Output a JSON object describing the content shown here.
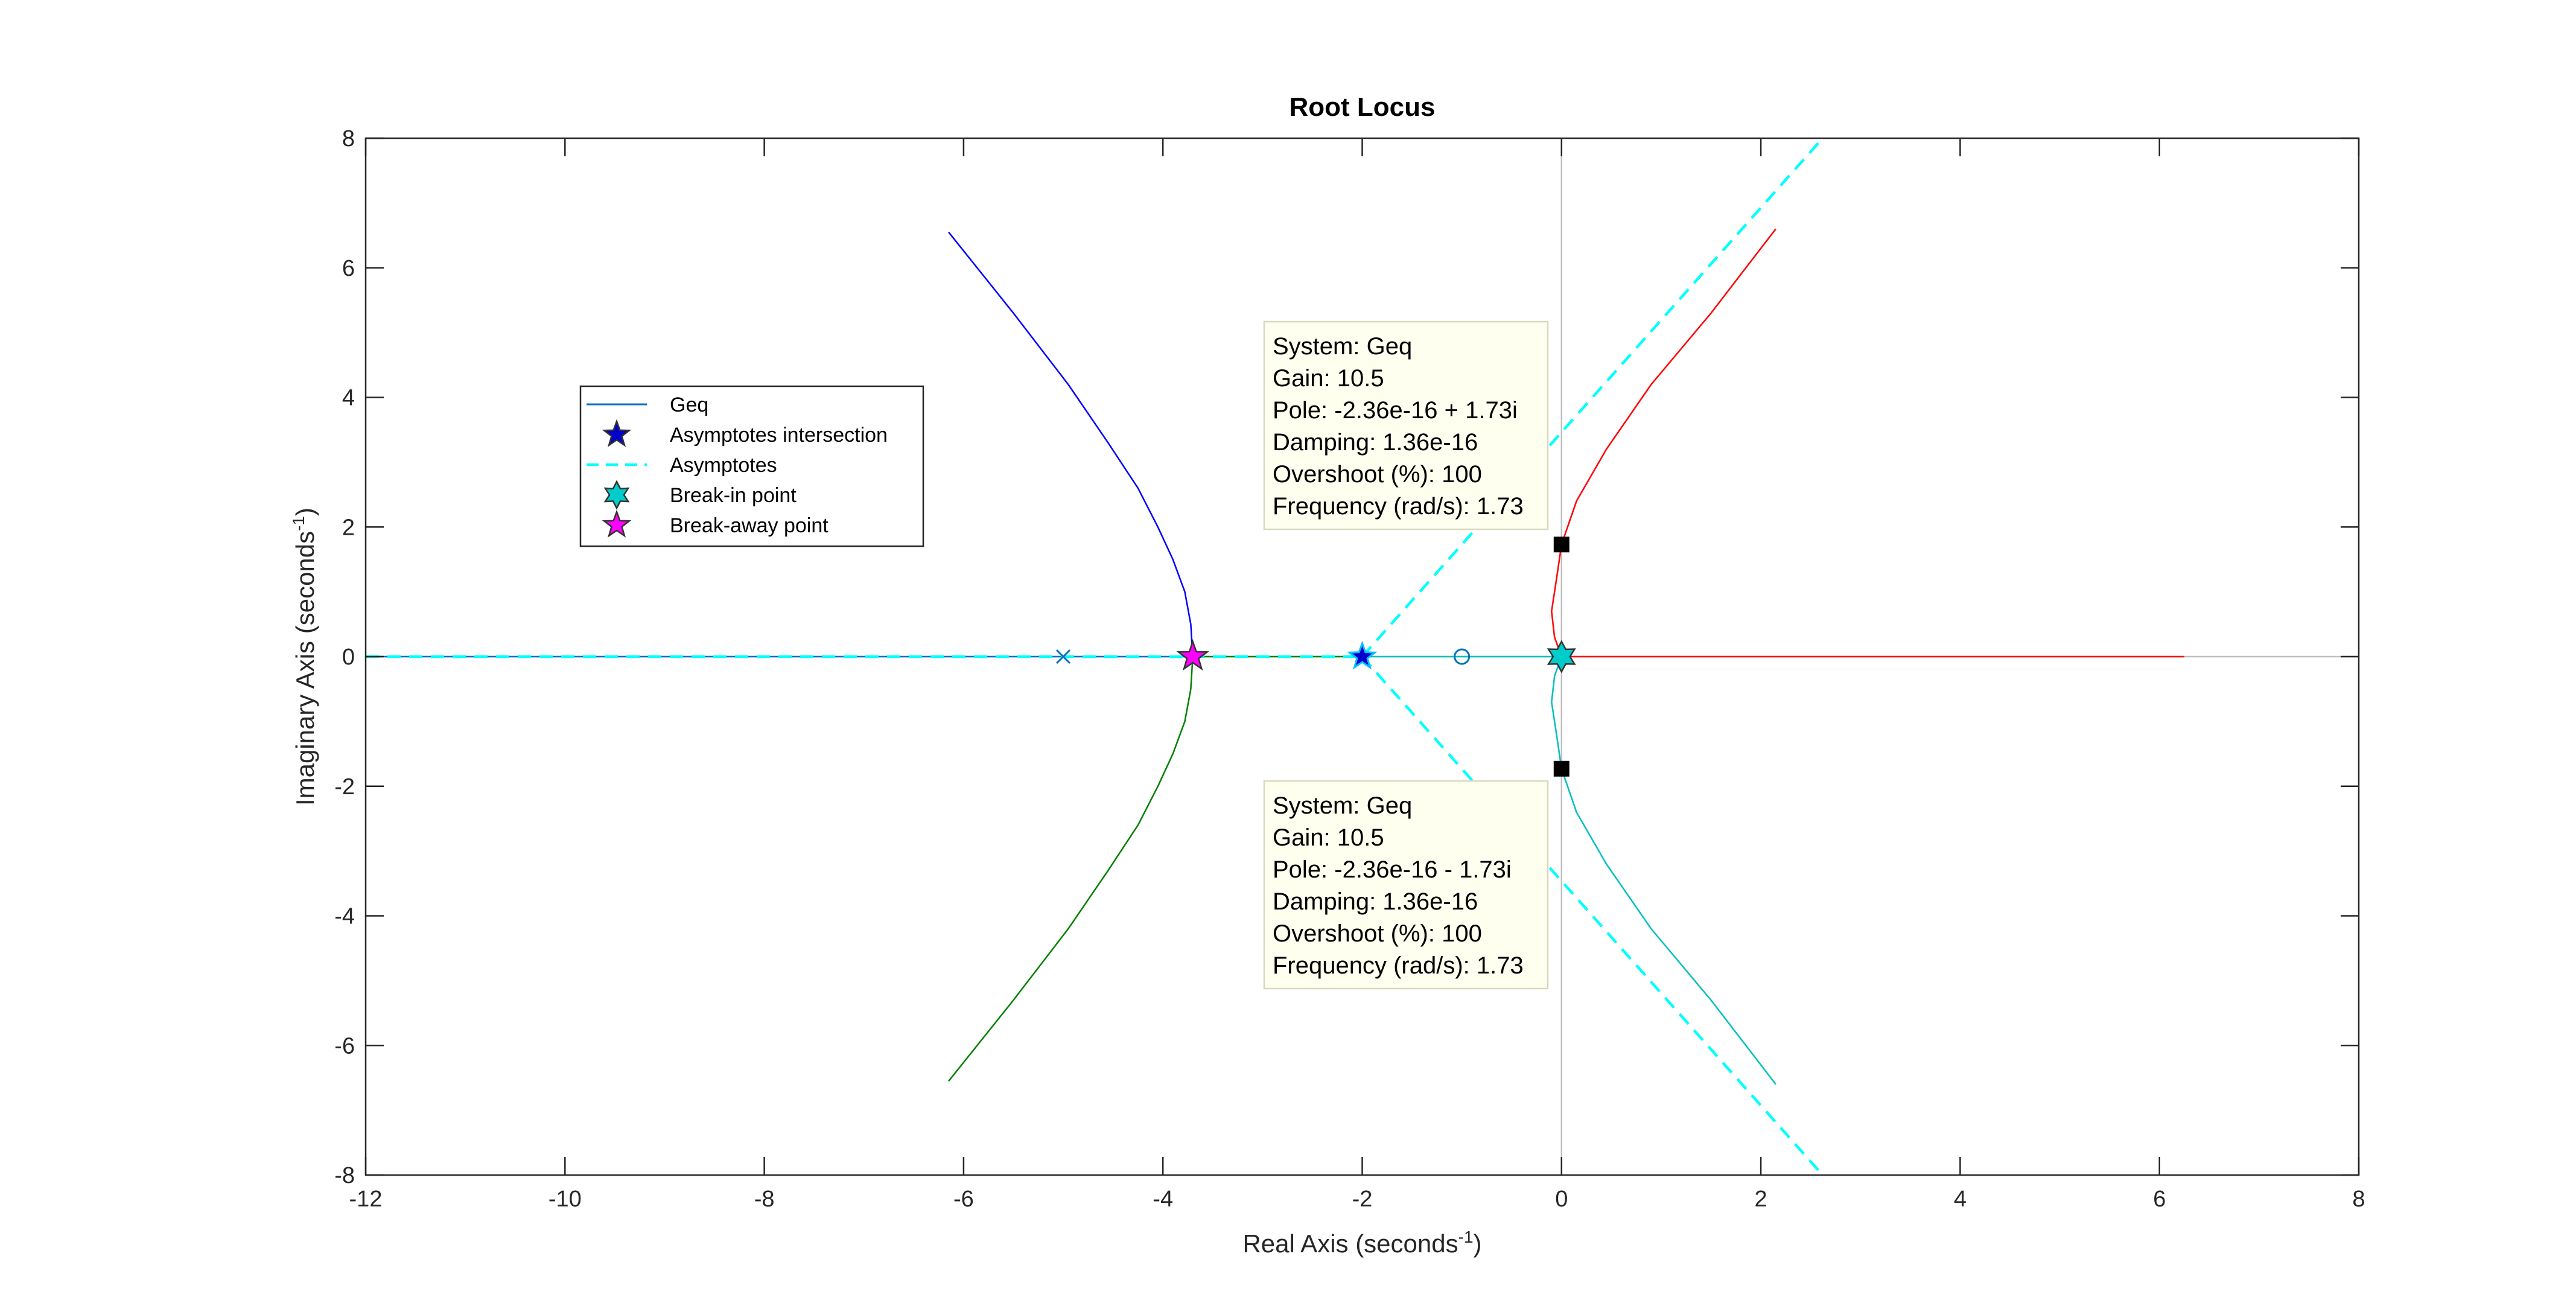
{
  "chart_data": {
    "type": "line",
    "title": "Root Locus",
    "xlabel": {
      "text": "Real Axis (seconds",
      "sup": "-1",
      "close": ")"
    },
    "ylabel": {
      "text": "Imaginary Axis (seconds",
      "sup": "-1",
      "close": ")"
    },
    "xlim": [
      -12,
      8
    ],
    "ylim": [
      -8,
      8
    ],
    "xticks": [
      -12,
      -10,
      -8,
      -6,
      -4,
      -2,
      0,
      2,
      4,
      6,
      8
    ],
    "yticks": [
      -8,
      -6,
      -4,
      -2,
      0,
      2,
      4,
      6,
      8
    ],
    "grid": false,
    "legend_position": "left",
    "legend": [
      {
        "label": "Geq",
        "kind": "line",
        "color": "#0072BD"
      },
      {
        "label": "Asymptotes intersection",
        "kind": "star",
        "color": "#0000CC"
      },
      {
        "label": "Asymptotes",
        "kind": "dash",
        "color": "#00FFFF"
      },
      {
        "label": "Break-in point",
        "kind": "hexagram",
        "color": "#00CCCC"
      },
      {
        "label": "Break-away point",
        "kind": "star",
        "color": "#FF00FF"
      }
    ],
    "series": [
      {
        "color": "#0000FF",
        "points": [
          [
            -3.7,
            0
          ],
          [
            -3.72,
            0.5
          ],
          [
            -3.78,
            1.0
          ],
          [
            -3.9,
            1.5
          ],
          [
            -4.05,
            2.0
          ],
          [
            -4.25,
            2.6
          ],
          [
            -4.55,
            3.3
          ],
          [
            -4.95,
            4.2
          ],
          [
            -5.5,
            5.3
          ],
          [
            -6.15,
            6.55
          ]
        ]
      },
      {
        "color": "#008000",
        "points": [
          [
            -3.7,
            0
          ],
          [
            -3.72,
            -0.5
          ],
          [
            -3.78,
            -1.0
          ],
          [
            -3.9,
            -1.5
          ],
          [
            -4.05,
            -2.0
          ],
          [
            -4.25,
            -2.6
          ],
          [
            -4.55,
            -3.3
          ],
          [
            -4.95,
            -4.2
          ],
          [
            -5.5,
            -5.3
          ],
          [
            -6.15,
            -6.55
          ]
        ]
      },
      {
        "color": "#FF0000",
        "points": [
          [
            0,
            0
          ],
          [
            -0.07,
            0.3
          ],
          [
            -0.1,
            0.7
          ],
          [
            -0.05,
            1.2
          ],
          [
            0,
            1.73
          ],
          [
            0.15,
            2.4
          ],
          [
            0.45,
            3.2
          ],
          [
            0.9,
            4.2
          ],
          [
            1.5,
            5.3
          ],
          [
            2.15,
            6.6
          ]
        ]
      },
      {
        "color": "#00BFBF",
        "points": [
          [
            0,
            0
          ],
          [
            -0.07,
            -0.3
          ],
          [
            -0.1,
            -0.7
          ],
          [
            -0.05,
            -1.2
          ],
          [
            0,
            -1.73
          ],
          [
            0.15,
            -2.4
          ],
          [
            0.45,
            -3.2
          ],
          [
            0.9,
            -4.2
          ],
          [
            1.5,
            -5.3
          ],
          [
            2.15,
            -6.6
          ]
        ]
      },
      {
        "color": "#008000",
        "points": [
          [
            -3.7,
            0
          ],
          [
            -2.0,
            0
          ]
        ]
      },
      {
        "color": "#FF0000",
        "points": [
          [
            0,
            0
          ],
          [
            6.25,
            0
          ]
        ]
      },
      {
        "color": "#0072BD",
        "points": [
          [
            -12,
            0
          ],
          [
            -3.7,
            0
          ]
        ]
      },
      {
        "color": "#00BFBF",
        "points": [
          [
            -2.0,
            0
          ],
          [
            0,
            0
          ]
        ]
      }
    ],
    "asymptotes": {
      "color": "#00FFFF",
      "lines": [
        [
          [
            -12,
            0
          ],
          [
            -2,
            0
          ]
        ],
        [
          [
            -2,
            0
          ],
          [
            2.62,
            8
          ]
        ],
        [
          [
            -2,
            0
          ],
          [
            2.62,
            -8
          ]
        ]
      ]
    },
    "open_loop_poles": [
      [
        -5,
        0
      ]
    ],
    "zeros": [
      [
        -1,
        0
      ]
    ],
    "asymptote_intersection": [
      -2,
      0
    ],
    "break_in_point": [
      0,
      0
    ],
    "break_away_point": [
      -3.7,
      0
    ],
    "selected_points": [
      [
        0,
        1.73
      ],
      [
        0,
        -1.73
      ]
    ],
    "datatips": [
      {
        "anchor": [
          0,
          1.73
        ],
        "lines": [
          "System: Geq",
          "Gain: 10.5",
          "Pole: -2.36e-16 + 1.73i",
          "Damping: 1.36e-16",
          "Overshoot (%): 100",
          "Frequency (rad/s): 1.73"
        ]
      },
      {
        "anchor": [
          0,
          -1.73
        ],
        "lines": [
          "System: Geq",
          "Gain: 10.5",
          "Pole: -2.36e-16 - 1.73i",
          "Damping: 1.36e-16",
          "Overshoot (%): 100",
          "Frequency (rad/s): 1.73"
        ]
      }
    ]
  }
}
